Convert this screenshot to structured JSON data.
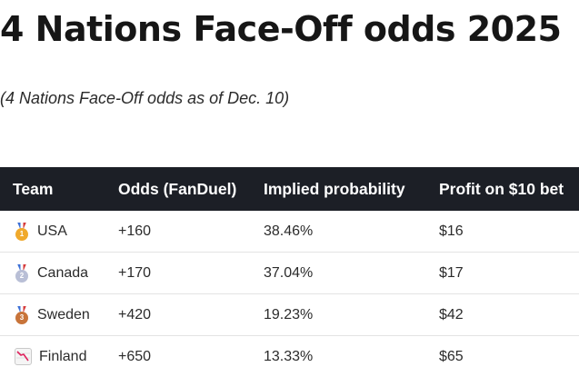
{
  "header": {
    "title": "4 Nations Face-Off odds 2025",
    "subtitle": "(4 Nations Face-Off odds as of Dec. 10)"
  },
  "table": {
    "columns": [
      "Team",
      "Odds (FanDuel)",
      "Implied probability",
      "Profit on $10 bet"
    ],
    "rows": [
      {
        "team": "USA",
        "odds": "+160",
        "probability": "38.46%",
        "profit": "$16",
        "icon": "gold-medal-icon",
        "medal_color": "#f0a92c",
        "medal_number": "1"
      },
      {
        "team": "Canada",
        "odds": "+170",
        "probability": "37.04%",
        "profit": "$17",
        "icon": "silver-medal-icon",
        "medal_color": "#b9bfd6",
        "medal_number": "2"
      },
      {
        "team": "Sweden",
        "odds": "+420",
        "probability": "19.23%",
        "profit": "$42",
        "icon": "bronze-medal-icon",
        "medal_color": "#c8743a",
        "medal_number": "3"
      },
      {
        "team": "Finland",
        "odds": "+650",
        "probability": "13.33%",
        "profit": "$65",
        "icon": "chart-decreasing-icon"
      }
    ]
  },
  "colors": {
    "header_background": "#1c1f26",
    "header_text": "#ffffff",
    "row_divider": "#e3e3e3",
    "decline_line": "#e0245e"
  }
}
